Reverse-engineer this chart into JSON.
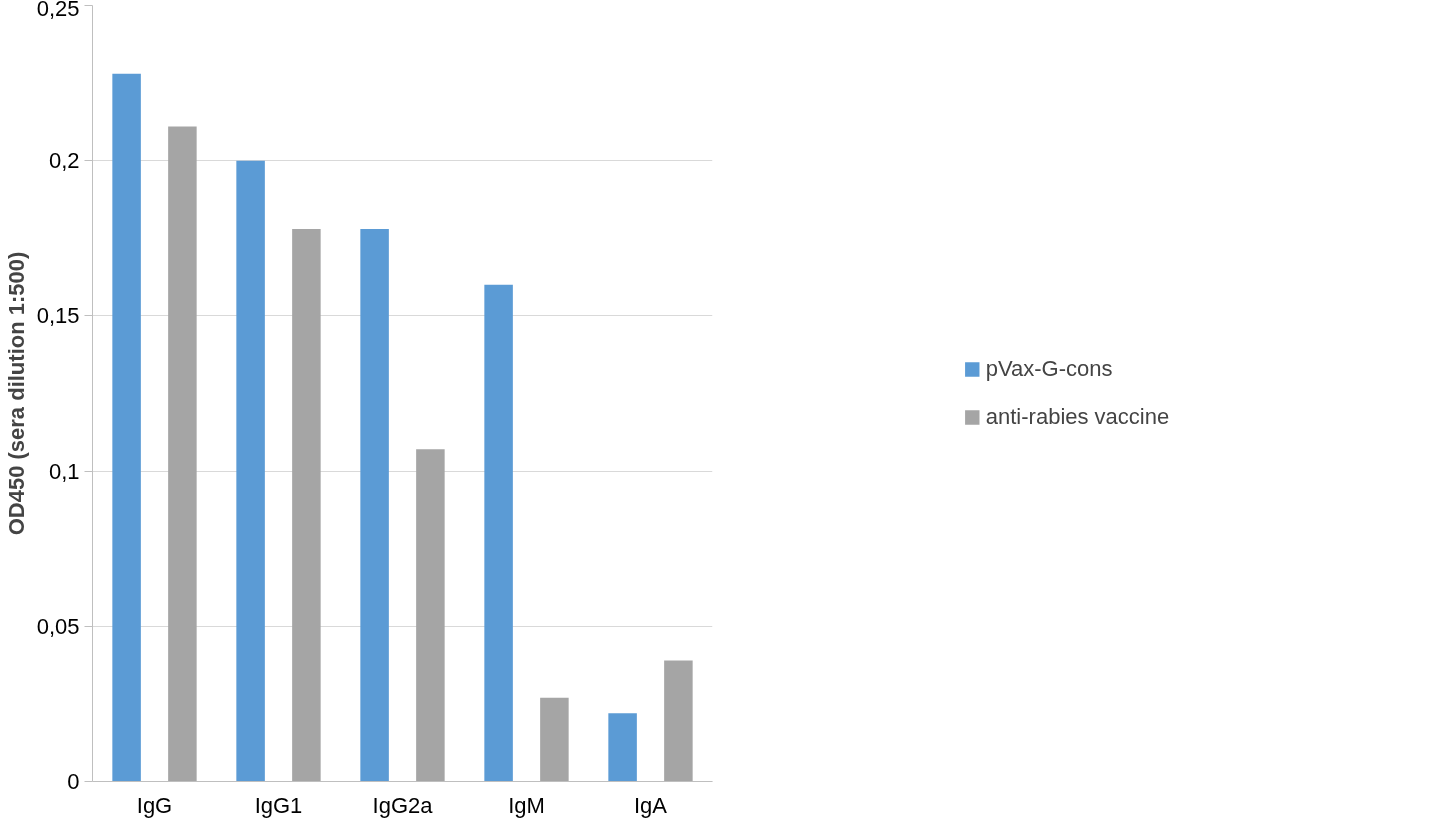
{
  "chart_data": {
    "type": "bar",
    "ylabel": "OD450 (sera dilution 1:500)",
    "categories": [
      "IgG",
      "IgG1",
      "IgG2a",
      "IgM",
      "IgA"
    ],
    "series": [
      {
        "name": "pVax-G-cons",
        "color": "#5b9bd5",
        "values": [
          0.228,
          0.2,
          0.178,
          0.16,
          0.022
        ]
      },
      {
        "name": "anti-rabies vaccine",
        "color": "#a5a5a5",
        "values": [
          0.211,
          0.178,
          0.107,
          0.027,
          0.039
        ]
      }
    ],
    "ylim": [
      0,
      0.25
    ],
    "yticks": [
      {
        "value": 0,
        "label": "0"
      },
      {
        "value": 0.05,
        "label": "0,05"
      },
      {
        "value": 0.1,
        "label": "0,1"
      },
      {
        "value": 0.15,
        "label": "0,15"
      },
      {
        "value": 0.2,
        "label": "0,2"
      },
      {
        "value": 0.25,
        "label": "0,25"
      }
    ],
    "grid": "y",
    "legend": "right"
  }
}
